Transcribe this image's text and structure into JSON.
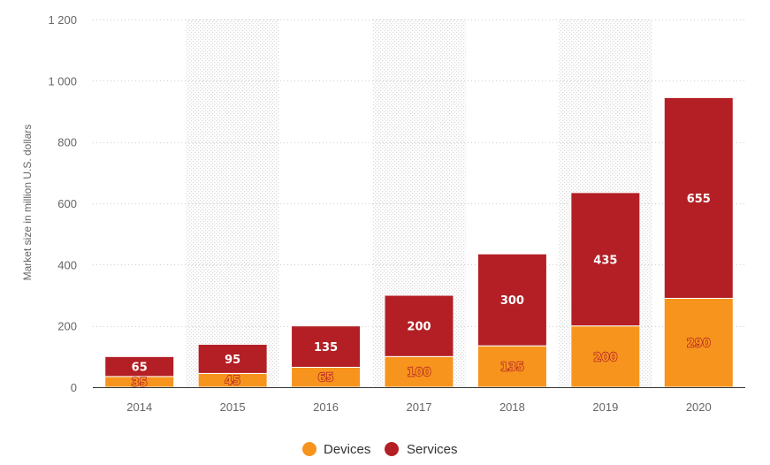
{
  "chart_data": {
    "type": "bar",
    "stacked": true,
    "categories": [
      "2014",
      "2015",
      "2016",
      "2017",
      "2018",
      "2019",
      "2020"
    ],
    "series": [
      {
        "name": "Devices",
        "values": [
          35,
          45,
          65,
          100,
          135,
          200,
          290
        ],
        "color": "#f7941d"
      },
      {
        "name": "Services",
        "values": [
          65,
          95,
          135,
          200,
          300,
          435,
          655
        ],
        "color": "#b31f24"
      }
    ],
    "ylabel": "Market size in million U.S. dollars",
    "ylim": [
      0,
      1200
    ],
    "yticks": [
      0,
      200,
      400,
      600,
      800,
      1000,
      1200
    ],
    "ytick_labels": [
      "0",
      "200",
      "400",
      "600",
      "800",
      "1 000",
      "1 200"
    ],
    "grid": true,
    "legend": "bottom"
  }
}
